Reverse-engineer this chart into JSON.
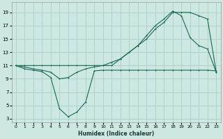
{
  "xlabel": "Humidex (Indice chaleur)",
  "bg_color": "#cce8e0",
  "grid_color": "#aad0c8",
  "line_color": "#1a6858",
  "xlim": [
    -0.5,
    23.5
  ],
  "ylim": [
    2.5,
    20.5
  ],
  "xticks": [
    0,
    1,
    2,
    3,
    4,
    5,
    6,
    7,
    8,
    9,
    10,
    11,
    12,
    13,
    14,
    15,
    16,
    17,
    18,
    19,
    20,
    21,
    22,
    23
  ],
  "yticks": [
    3,
    5,
    7,
    9,
    11,
    13,
    15,
    17,
    19
  ],
  "curve_upper_x": [
    0,
    1,
    2,
    3,
    4,
    5,
    6,
    7,
    8,
    9,
    10,
    11,
    12,
    13,
    14,
    15,
    16,
    17,
    18,
    19,
    20,
    21,
    22,
    23
  ],
  "curve_upper_y": [
    11,
    11,
    11,
    11,
    11,
    11,
    11,
    11,
    11,
    11,
    11,
    11,
    12,
    13,
    14,
    15,
    16.5,
    17.5,
    19,
    19,
    19,
    18.5,
    18,
    10
  ],
  "curve_mid_x": [
    0,
    1,
    2,
    3,
    4,
    5,
    6,
    7,
    8,
    9,
    10,
    11,
    12,
    13,
    14,
    15,
    16,
    17,
    18,
    19,
    20,
    21,
    22,
    23
  ],
  "curve_mid_y": [
    11,
    10.8,
    10.5,
    10.3,
    10,
    9,
    9.2,
    10,
    10.5,
    10.8,
    11,
    11.5,
    12,
    13,
    14,
    15.5,
    17,
    18,
    19.2,
    18.5,
    15.2,
    14,
    13.5,
    10
  ],
  "curve_low_x": [
    0,
    1,
    2,
    3,
    4,
    5,
    6,
    7,
    8,
    9,
    10,
    11,
    12,
    13,
    14,
    15,
    16,
    17,
    18,
    19,
    20,
    21,
    22,
    23
  ],
  "curve_low_y": [
    11,
    10.5,
    10.3,
    10.1,
    9.2,
    4.5,
    3.3,
    4.0,
    5.5,
    10.2,
    10.3,
    10.3,
    10.3,
    10.3,
    10.3,
    10.3,
    10.3,
    10.3,
    10.3,
    10.3,
    10.3,
    10.3,
    10.3,
    10.2
  ]
}
